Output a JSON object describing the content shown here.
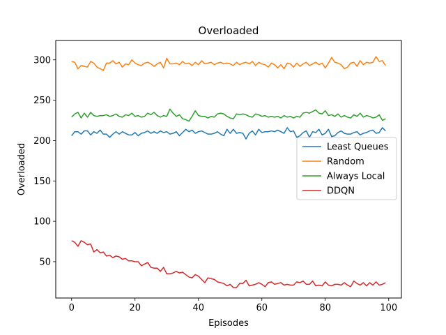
{
  "chart_data": {
    "type": "line",
    "title": "Overloaded",
    "xlabel": "Episodes",
    "ylabel": "Overloaded",
    "xlim": [
      -5,
      104
    ],
    "ylim": [
      5,
      324
    ],
    "xticks": [
      0,
      20,
      40,
      60,
      80,
      100
    ],
    "yticks": [
      50,
      100,
      150,
      200,
      250,
      300
    ],
    "grid": false,
    "legend_position": "center-right",
    "series": [
      {
        "name": "Least Queues",
        "color": "#1f77b4",
        "values": [
          206,
          211,
          211,
          208,
          212,
          212,
          207,
          211,
          209,
          213,
          208,
          208,
          204,
          208,
          211,
          208,
          211,
          209,
          207,
          207,
          210,
          206,
          209,
          210,
          212,
          209,
          211,
          209,
          212,
          210,
          211,
          208,
          209,
          211,
          206,
          210,
          214,
          211,
          213,
          209,
          211,
          212,
          210,
          208,
          208,
          209,
          211,
          208,
          206,
          214,
          209,
          214,
          209,
          210,
          209,
          202,
          209,
          212,
          207,
          214,
          210,
          211,
          211,
          212,
          211,
          213,
          211,
          209,
          216,
          211,
          212,
          204,
          206,
          210,
          212,
          204,
          211,
          210,
          214,
          207,
          209,
          214,
          205,
          206,
          210,
          212,
          209,
          208,
          208,
          210,
          211,
          207,
          209,
          210,
          212,
          213,
          209,
          210,
          216,
          212
        ]
      },
      {
        "name": "Random",
        "color": "#ff7f0e",
        "values": [
          298,
          297,
          289,
          293,
          292,
          291,
          298,
          296,
          291,
          289,
          287,
          296,
          296,
          299,
          295,
          297,
          291,
          295,
          294,
          300,
          296,
          294,
          293,
          296,
          297,
          295,
          292,
          295,
          297,
          290,
          302,
          295,
          295,
          296,
          294,
          298,
          295,
          296,
          293,
          297,
          294,
          299,
          295,
          296,
          297,
          294,
          296,
          297,
          295,
          296,
          295,
          293,
          297,
          294,
          296,
          297,
          295,
          298,
          293,
          297,
          295,
          294,
          291,
          296,
          294,
          290,
          294,
          289,
          296,
          295,
          291,
          296,
          292,
          295,
          297,
          293,
          295,
          297,
          294,
          296,
          290,
          296,
          303,
          297,
          296,
          294,
          289,
          291,
          296,
          297,
          292,
          299,
          294,
          297,
          296,
          297,
          304,
          298,
          299,
          293
        ]
      },
      {
        "name": "Always Local",
        "color": "#2ca02c",
        "values": [
          229,
          233,
          235,
          228,
          234,
          229,
          235,
          231,
          230,
          231,
          231,
          232,
          230,
          231,
          233,
          230,
          229,
          232,
          231,
          234,
          230,
          231,
          229,
          230,
          234,
          232,
          235,
          231,
          229,
          231,
          230,
          239,
          234,
          230,
          232,
          227,
          226,
          224,
          230,
          237,
          231,
          230,
          230,
          228,
          230,
          229,
          233,
          234,
          233,
          230,
          228,
          227,
          233,
          232,
          233,
          232,
          230,
          229,
          233,
          232,
          230,
          231,
          229,
          230,
          229,
          230,
          228,
          231,
          229,
          230,
          228,
          230,
          229,
          234,
          235,
          234,
          236,
          238,
          234,
          233,
          237,
          231,
          232,
          230,
          233,
          229,
          231,
          229,
          228,
          232,
          230,
          234,
          229,
          231,
          230,
          228,
          229,
          232,
          225,
          227
        ]
      },
      {
        "name": "DDQN",
        "color": "#d62728",
        "values": [
          76,
          74,
          69,
          76,
          74,
          71,
          72,
          62,
          65,
          61,
          62,
          57,
          58,
          55,
          57,
          56,
          53,
          54,
          51,
          51,
          50,
          50,
          45,
          47,
          49,
          43,
          42,
          42,
          38,
          43,
          35,
          35,
          36,
          38,
          36,
          37,
          34,
          31,
          30,
          34,
          32,
          28,
          24,
          30,
          29,
          28,
          25,
          24,
          23,
          20,
          22,
          18,
          18,
          23,
          23,
          27,
          20,
          21,
          22,
          24,
          22,
          19,
          24,
          25,
          22,
          23,
          24,
          21,
          22,
          21,
          21,
          25,
          24,
          26,
          22,
          22,
          26,
          20,
          21,
          20,
          25,
          21,
          20,
          22,
          22,
          21,
          24,
          21,
          19,
          26,
          23,
          21,
          24,
          20,
          24,
          21,
          25,
          21,
          22,
          24
        ]
      }
    ]
  }
}
